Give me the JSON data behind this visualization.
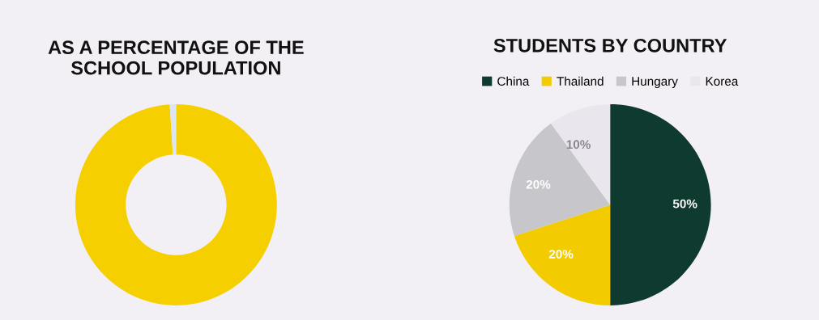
{
  "chart_data": [
    {
      "type": "donut",
      "title": "AS A PERCENTAGE OF THE\nSCHOOL POPULATION",
      "categories": [
        null,
        null
      ],
      "values": [
        99,
        1
      ],
      "colors": [
        "#f5cf00",
        "#dbe6f0"
      ]
    },
    {
      "type": "pie",
      "title": "STUDENTS BY COUNTRY",
      "categories": [
        "China",
        "Thailand",
        "Hungary",
        "Korea"
      ],
      "values": [
        50,
        20,
        20,
        10
      ],
      "colors": [
        "#0f3a30",
        "#f2cc00",
        "#c6c6cb",
        "#e9e6ee"
      ],
      "value_labels": [
        "50%",
        "20%",
        "20%",
        "10%"
      ],
      "legend": "top"
    }
  ]
}
